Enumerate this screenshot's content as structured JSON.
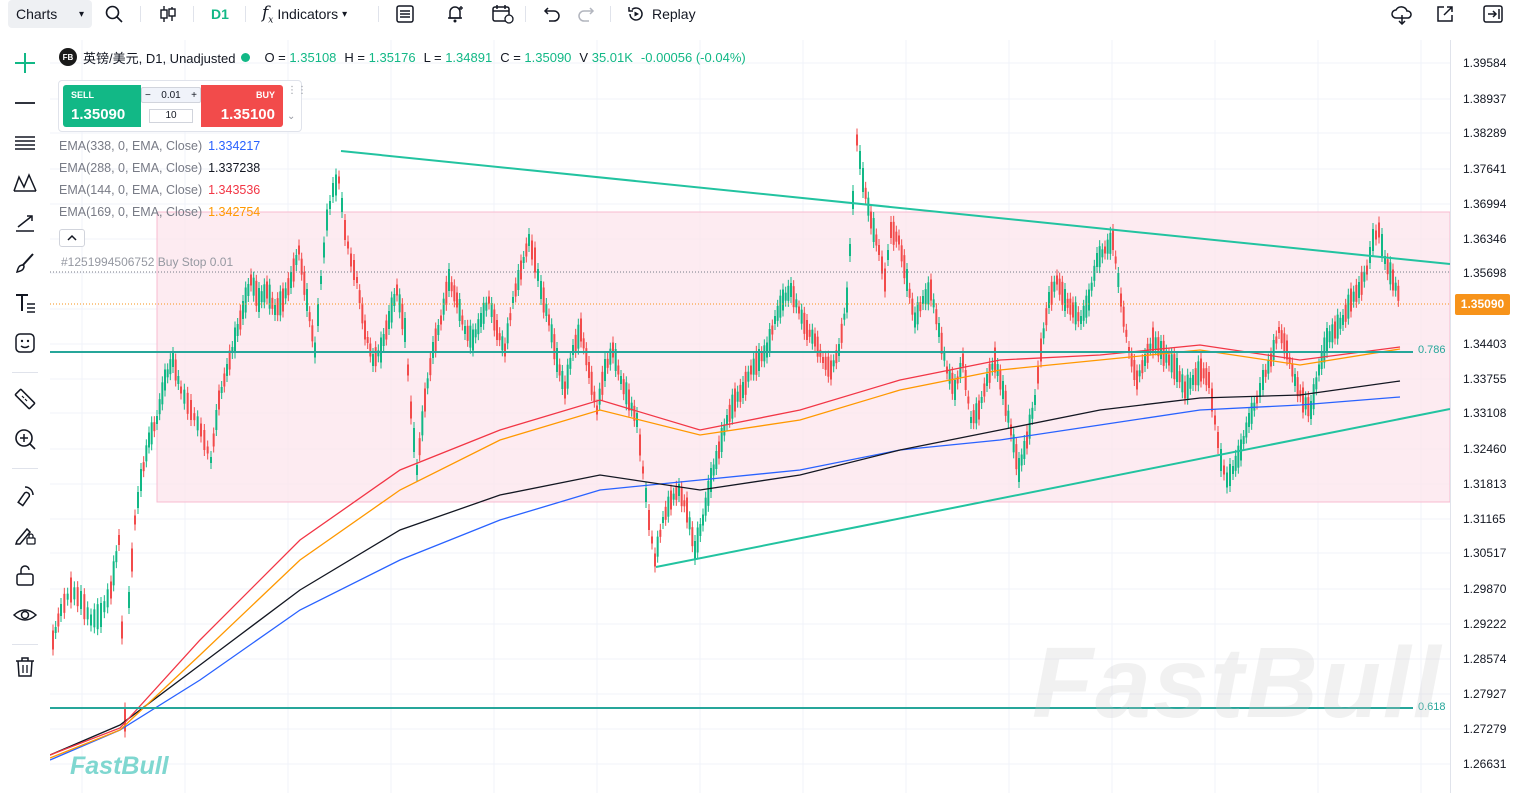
{
  "toolbar": {
    "charts_label": "Charts",
    "interval": "D1",
    "indicators_label": "Indicators",
    "replay_label": "Replay"
  },
  "legend": {
    "badge": "FB",
    "symbol": "英镑/美元, D1, Unadjusted",
    "o_label": "O =",
    "o_value": "1.35108",
    "h_label": "H =",
    "h_value": "1.35176",
    "l_label": "L =",
    "l_value": "1.34891",
    "c_label": "C =",
    "c_value": "1.35090",
    "v_label": "V",
    "v_value": "35.01K",
    "change": "-0.00056 (-0.04%)"
  },
  "trade": {
    "sell_label": "SELL",
    "sell_price": "1.35090",
    "buy_label": "BUY",
    "buy_price": "1.35100",
    "step": "0.01",
    "lots": "10"
  },
  "indicators": [
    {
      "name": "EMA(338, 0, EMA, Close)",
      "value": "1.334217",
      "color": "#2962ff"
    },
    {
      "name": "EMA(288, 0, EMA, Close)",
      "value": "1.337238",
      "color": "#131722"
    },
    {
      "name": "EMA(144, 0, EMA, Close)",
      "value": "1.343536",
      "color": "#f23645"
    },
    {
      "name": "EMA(169, 0, EMA, Close)",
      "value": "1.342754",
      "color": "#ff9800"
    }
  ],
  "order_label": "#1251994506752 Buy Stop 0.01",
  "price_axis": [
    "1.39584",
    "1.38937",
    "1.38289",
    "1.37641",
    "1.36994",
    "1.36346",
    "1.35698",
    "1.35090",
    "1.34403",
    "1.33755",
    "1.33108",
    "1.32460",
    "1.31813",
    "1.31165",
    "1.30517",
    "1.29870",
    "1.29222",
    "1.28574",
    "1.27927",
    "1.27279",
    "1.26631"
  ],
  "last_price": "1.35090",
  "fib_levels": {
    "upper": "0.786",
    "lower": "0.618"
  },
  "watermark": "FastBull",
  "colors": {
    "up": "#12b886",
    "down": "#f24b4b",
    "accent": "#12b886",
    "ema338": "#2962ff",
    "ema288": "#131722",
    "ema144": "#f23645",
    "ema169": "#ff9800",
    "fib_line": "#26a69a",
    "trend_line": "#22c3a0",
    "range_box": "#fce4ec"
  },
  "icons": [
    "search-icon",
    "candles-icon",
    "indicators-icon",
    "layout-icon",
    "alert-icon",
    "calendar-replay-icon",
    "undo-icon",
    "redo-icon",
    "replay-icon",
    "cloud-icon",
    "popout-icon",
    "fullscreen-exit-icon",
    "crosshair-icon",
    "horizontal-line-icon",
    "fib-icon",
    "pattern-icon",
    "trend-icon",
    "brush-icon",
    "text-icon",
    "emoji-icon",
    "ruler-icon",
    "zoom-icon",
    "magnet-icon",
    "lock-draw-icon",
    "unlock-icon",
    "eye-icon",
    "trash-icon"
  ]
}
